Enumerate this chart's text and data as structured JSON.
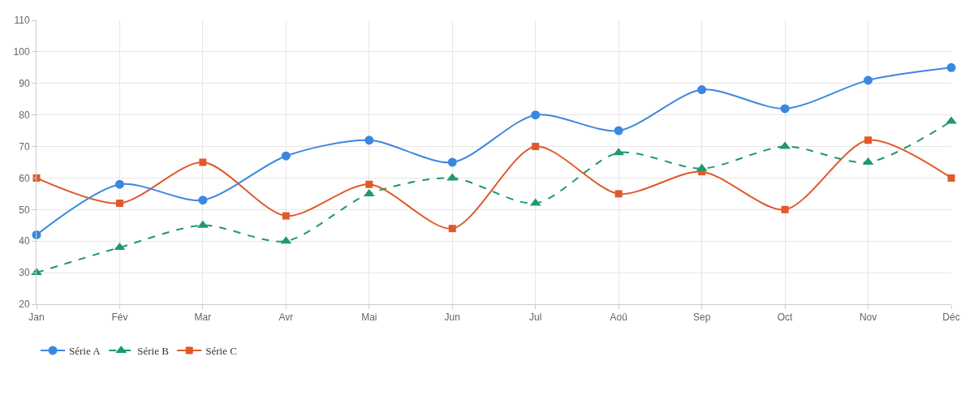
{
  "chart_data": {
    "type": "line",
    "categories": [
      "Jan",
      "Fév",
      "Mar",
      "Avr",
      "Mai",
      "Jun",
      "Jul",
      "Aoû",
      "Sep",
      "Oct",
      "Nov",
      "Déc"
    ],
    "series": [
      {
        "name": "Série A",
        "color": "#3a87e0",
        "marker": "circle",
        "line_style": "solid",
        "values": [
          42,
          58,
          53,
          67,
          72,
          65,
          80,
          75,
          88,
          82,
          91,
          95
        ]
      },
      {
        "name": "Série B",
        "color": "#1f9a6a",
        "marker": "triangle",
        "line_style": "dashed",
        "values": [
          30,
          38,
          45,
          40,
          55,
          60,
          52,
          68,
          63,
          70,
          65,
          78
        ]
      },
      {
        "name": "Série C",
        "color": "#e0592a",
        "marker": "square",
        "line_style": "solid",
        "values": [
          60,
          52,
          65,
          48,
          58,
          44,
          70,
          55,
          62,
          50,
          72,
          60
        ]
      }
    ],
    "ylim": [
      20,
      110
    ],
    "yticks": [
      20,
      30,
      40,
      50,
      60,
      70,
      80,
      90,
      100,
      110
    ],
    "grid": true,
    "legend": "bottom left"
  }
}
